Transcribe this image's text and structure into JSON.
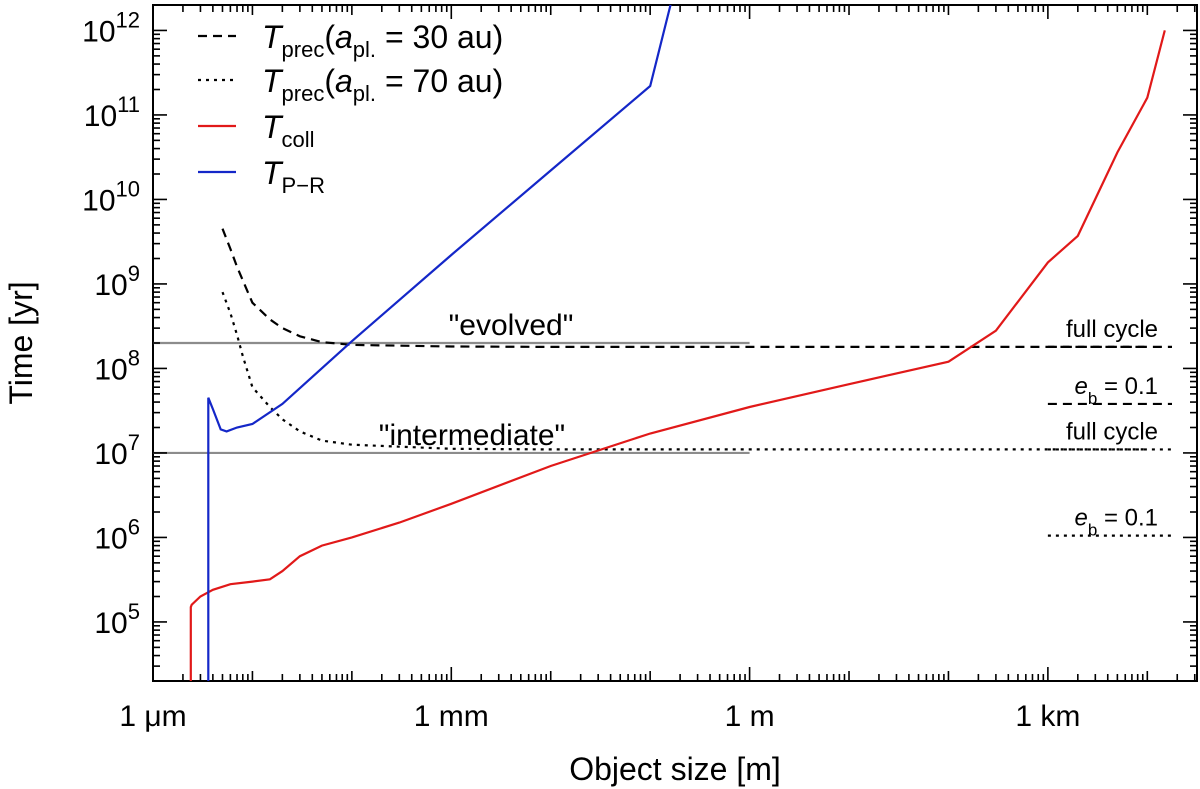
{
  "chart_data": {
    "type": "line",
    "xlabel": "Object size [m]",
    "ylabel": "Time [yr]",
    "xscale": "log",
    "yscale": "log",
    "xlim": [
      1e-06,
      31600.0
    ],
    "ylim": [
      20000.0,
      2000000000000.0
    ],
    "grid": false,
    "legend_position": "top-left",
    "x_ticks": [
      {
        "value": 1e-06,
        "label": "1 μm"
      },
      {
        "value": 0.001,
        "label": "1 mm"
      },
      {
        "value": 1,
        "label": "1 m"
      },
      {
        "value": 1000,
        "label": "1 km"
      }
    ],
    "y_ticks": [
      {
        "value": 100000.0,
        "base": "10",
        "exp": "5"
      },
      {
        "value": 1000000.0,
        "base": "10",
        "exp": "6"
      },
      {
        "value": 10000000.0,
        "base": "10",
        "exp": "7"
      },
      {
        "value": 100000000.0,
        "base": "10",
        "exp": "8"
      },
      {
        "value": 1000000000.0,
        "base": "10",
        "exp": "9"
      },
      {
        "value": 10000000000.0,
        "base": "10",
        "exp": "10"
      },
      {
        "value": 100000000000.0,
        "base": "10",
        "exp": "11"
      },
      {
        "value": 1000000000000.0,
        "base": "10",
        "exp": "12"
      }
    ],
    "legend": [
      {
        "series": "tprec30",
        "main": "T",
        "sub": "prec",
        "rest1": "(a",
        "sub2": "pl.",
        "rest2": " = 30 au)"
      },
      {
        "series": "tprec70",
        "main": "T",
        "sub": "prec",
        "rest1": "(a",
        "sub2": "pl.",
        "rest2": " = 70 au)"
      },
      {
        "series": "tcoll",
        "main": "T",
        "sub": "coll",
        "rest1": "",
        "sub2": "",
        "rest2": ""
      },
      {
        "series": "tpr",
        "main": "T",
        "sub": "P−R",
        "rest1": "",
        "sub2": "",
        "rest2": ""
      }
    ],
    "series": [
      {
        "id": "tprec30",
        "name": "T_prec(a_pl. = 30 au)",
        "color": "#000000",
        "style": "dashed",
        "x": [
          5e-06,
          6e-06,
          7e-06,
          8e-06,
          1e-05,
          1.5e-05,
          2e-05,
          3e-05,
          5e-05,
          0.0001,
          0.001,
          0.01,
          1,
          1000,
          10000.0
        ],
        "y": [
          4500000000.0,
          2600000000.0,
          1600000000.0,
          1100000000.0,
          600000000.0,
          380000000.0,
          300000000.0,
          240000000.0,
          205000000.0,
          190000000.0,
          182000000.0,
          180000000.0,
          180000000.0,
          180000000.0,
          180000000.0
        ]
      },
      {
        "id": "tprec70",
        "name": "T_prec(a_pl. = 70 au)",
        "color": "#000000",
        "style": "dotted",
        "x": [
          5e-06,
          6e-06,
          7e-06,
          8e-06,
          1e-05,
          1.5e-05,
          2e-05,
          3e-05,
          5e-05,
          0.0001,
          0.001,
          0.01,
          1,
          1000,
          10000.0
        ],
        "y": [
          800000000.0,
          450000000.0,
          250000000.0,
          140000000.0,
          60000000.0,
          35000000.0,
          25000000.0,
          18000000.0,
          14000000.0,
          12500000.0,
          11200000.0,
          11000000.0,
          11000000.0,
          11000000.0,
          11000000.0
        ]
      },
      {
        "id": "tcoll",
        "name": "T_coll",
        "color": "#e11919",
        "style": "solid",
        "x": [
          2.4e-06,
          2.4e-06,
          2.45e-06,
          3e-06,
          4e-06,
          6e-06,
          1e-05,
          1.5e-05,
          2e-05,
          3e-05,
          5e-05,
          0.0001,
          0.0003,
          0.001,
          0.01,
          0.1,
          1,
          10,
          100,
          300,
          1000,
          2000,
          5000,
          10000.0,
          15000.0
        ],
        "y": [
          20000.0,
          150000.0,
          160000.0,
          200000.0,
          240000.0,
          280000.0,
          300000.0,
          320000.0,
          400000.0,
          600000.0,
          800000.0,
          1000000.0,
          1500000.0,
          2500000.0,
          7000000.0,
          17000000.0,
          35000000.0,
          65000000.0,
          120000000.0,
          280000000.0,
          1800000000.0,
          3700000000.0,
          36000000000.0,
          160000000000.0,
          1000000000000.0
        ]
      },
      {
        "id": "tpr",
        "name": "T_P−R",
        "color": "#1427c8",
        "style": "solid",
        "x": [
          3.6e-06,
          3.6e-06,
          4e-06,
          4.8e-06,
          5.5e-06,
          7e-06,
          1e-05,
          2e-05,
          0.0001,
          0.001,
          0.01,
          0.1,
          0.01,
          0.1,
          0.16
        ],
        "y": [
          20000.0,
          45000000.0,
          33000000.0,
          19000000.0,
          18000000.0,
          20000000.0,
          22000000.0,
          38000000.0,
          210000000.0,
          2200000000.0,
          22000000000.0,
          220000000000.0,
          22000000000.0,
          220000000000.0,
          2000000000000.0
        ]
      }
    ],
    "reference_lines": [
      {
        "label": "\"evolved\"",
        "y": 200000000.0,
        "x_from": 1e-06,
        "x_to": 1,
        "color": "#8c8c8c"
      },
      {
        "label": "\"intermediate\"",
        "y": 10000000.0,
        "x_from": 1e-06,
        "x_to": 1,
        "color": "#8c8c8c"
      }
    ],
    "side_segments": [
      {
        "series": "tprec30",
        "style": "dashed",
        "y": 180000000.0,
        "label": "full cycle",
        "label_e": "",
        "label_sub": "",
        "label_rest": ""
      },
      {
        "series": "tprec30",
        "style": "dashed",
        "y": 38000000.0,
        "label": "",
        "label_e": "e",
        "label_sub": "b",
        "label_rest": " = 0.1"
      },
      {
        "series": "tprec70",
        "style": "dotted",
        "y": 11000000.0,
        "label": "full cycle",
        "label_e": "",
        "label_sub": "",
        "label_rest": ""
      },
      {
        "series": "tprec70",
        "style": "dotted",
        "y": 1050000.0,
        "label": "",
        "label_e": "e",
        "label_sub": "b",
        "label_rest": " = 0.1"
      }
    ]
  }
}
